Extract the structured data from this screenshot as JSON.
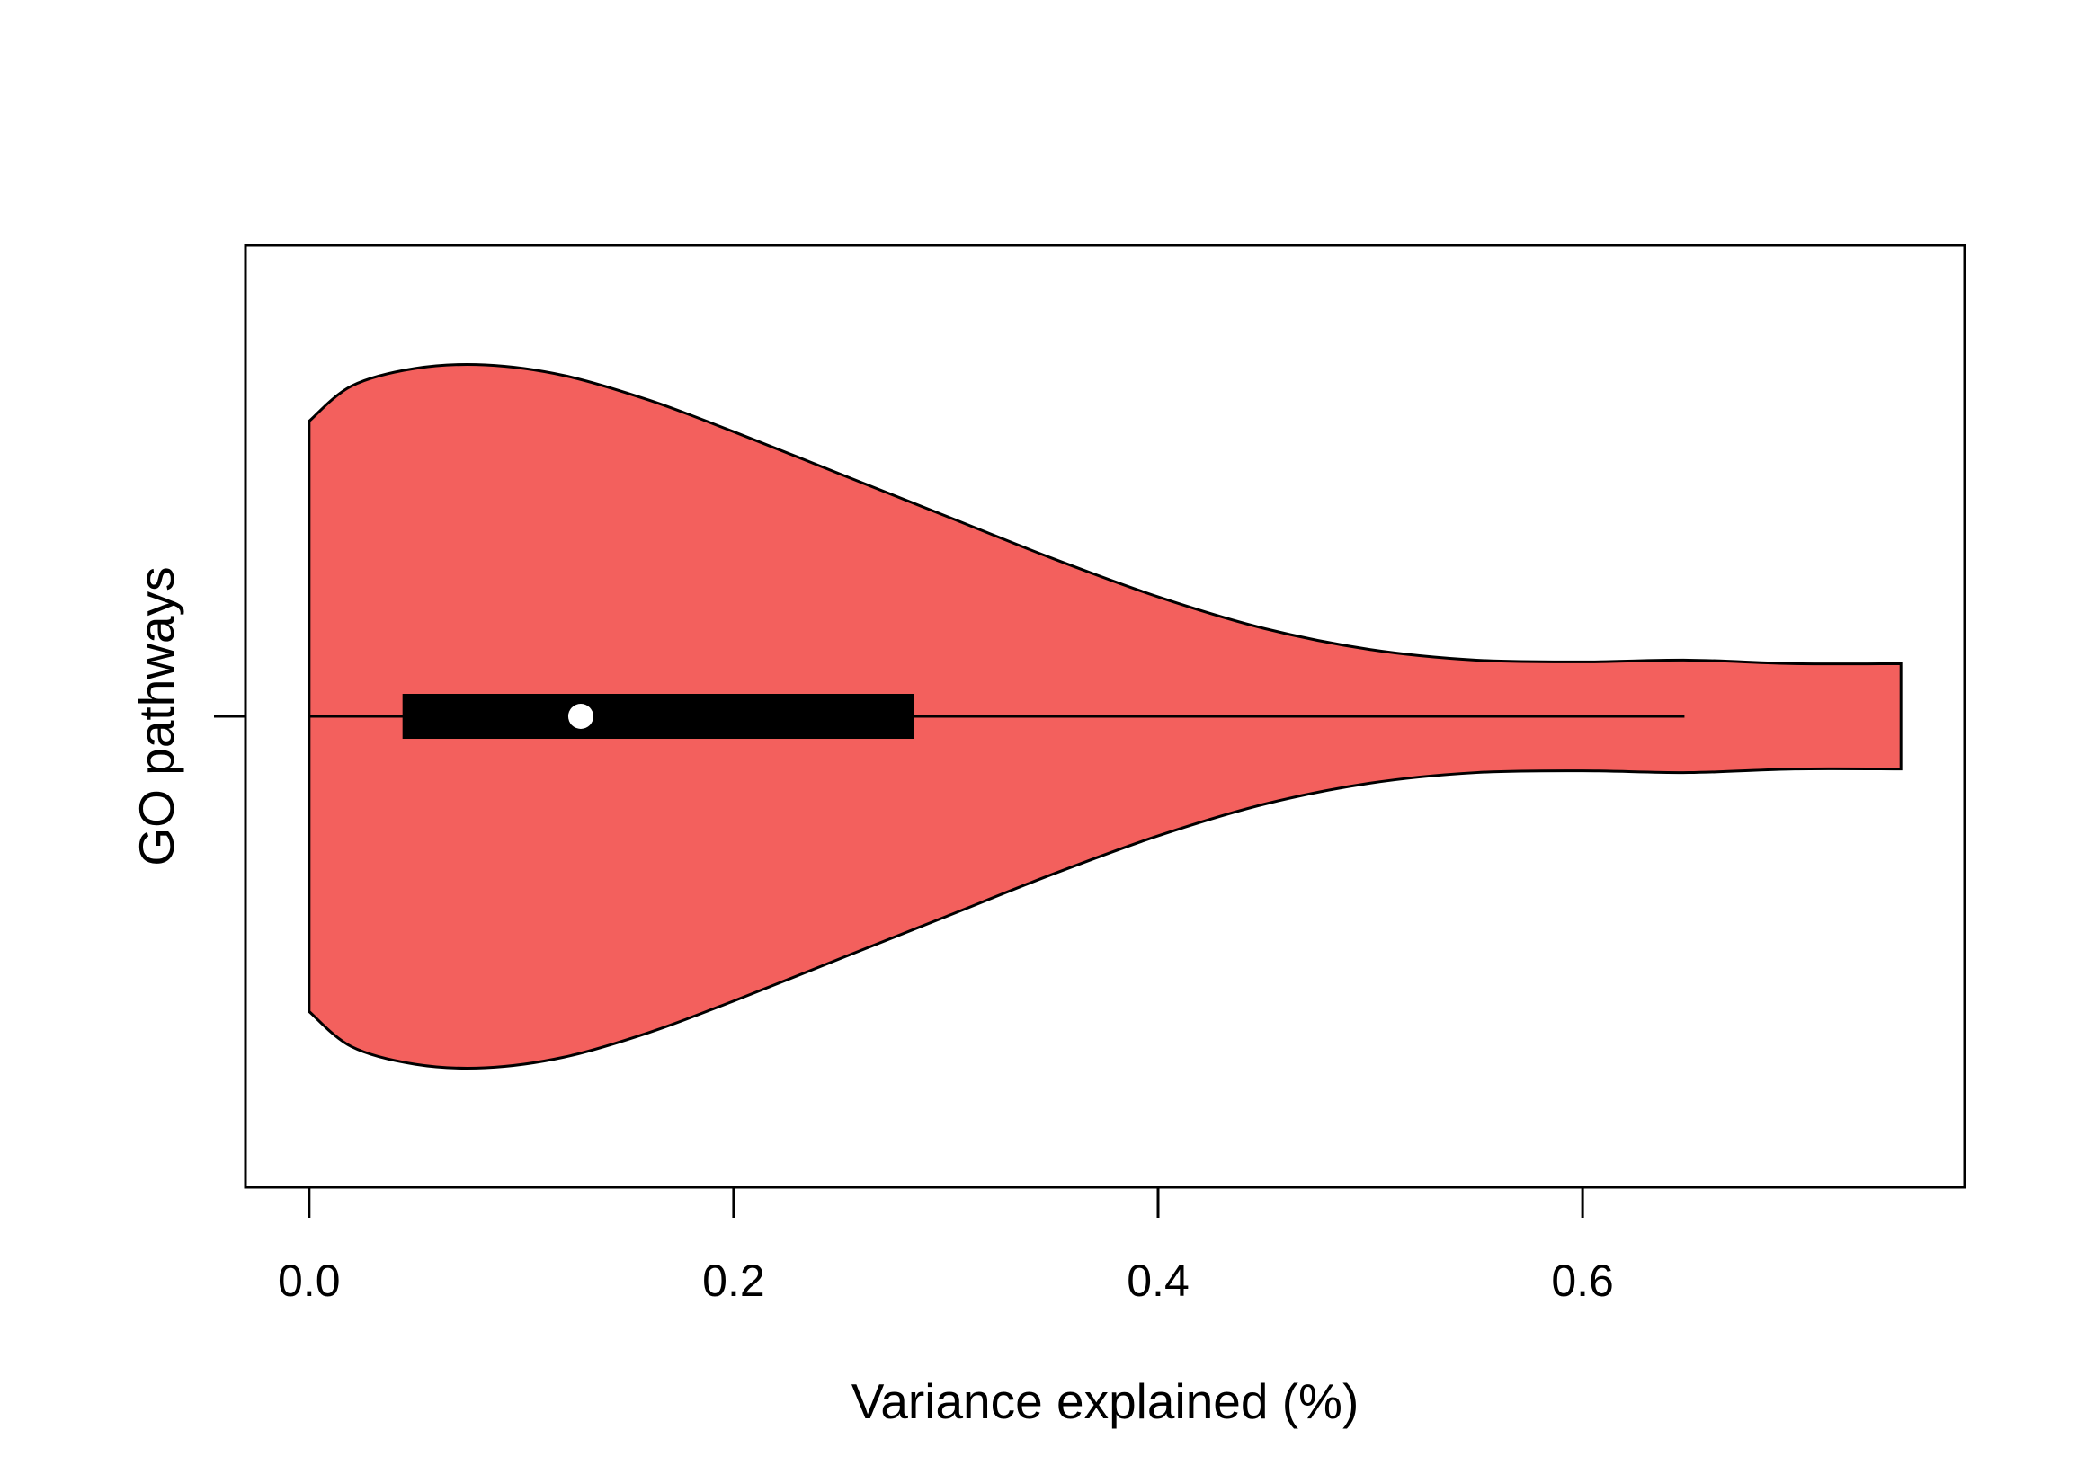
{
  "chart_data": {
    "type": "violin",
    "orientation": "horizontal",
    "xlabel": "Variance explained (%)",
    "ylabel": "GO pathways",
    "xlim": [
      -0.03,
      0.78
    ],
    "x_ticks": [
      0.0,
      0.2,
      0.4,
      0.6
    ],
    "x_tick_labels": [
      "0.0",
      "0.2",
      "0.4",
      "0.6"
    ],
    "grid": false,
    "legend": "none",
    "series": [
      {
        "fill_color": "#f3605d",
        "outline_color": "#000000",
        "range": [
          0.0,
          0.75
        ],
        "box": {
          "q1": 0.044,
          "median": 0.128,
          "q3": 0.285,
          "whisker_low": 0.0,
          "whisker_high": 0.648
        },
        "density_profile": [
          [
            0.0,
            0.84
          ],
          [
            0.02,
            0.94
          ],
          [
            0.05,
            0.99
          ],
          [
            0.083,
            1.0
          ],
          [
            0.12,
            0.97
          ],
          [
            0.16,
            0.9
          ],
          [
            0.2,
            0.81
          ],
          [
            0.25,
            0.69
          ],
          [
            0.3,
            0.57
          ],
          [
            0.35,
            0.45
          ],
          [
            0.4,
            0.34
          ],
          [
            0.45,
            0.25
          ],
          [
            0.5,
            0.19
          ],
          [
            0.55,
            0.16
          ],
          [
            0.6,
            0.155
          ],
          [
            0.65,
            0.16
          ],
          [
            0.7,
            0.15
          ],
          [
            0.75,
            0.15
          ]
        ]
      }
    ],
    "median_marker_color": "#ffffff"
  }
}
